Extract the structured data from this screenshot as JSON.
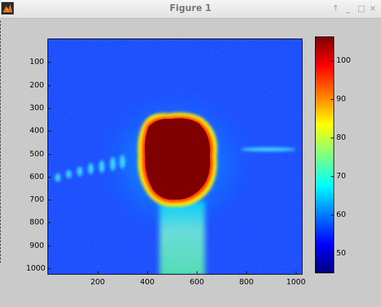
{
  "window": {
    "title": "Figure 1",
    "buttons": [
      "↑",
      "_",
      "□",
      "×"
    ]
  },
  "plot": {
    "xticks": [
      200,
      400,
      600,
      800,
      1000
    ],
    "yticks": [
      100,
      200,
      300,
      400,
      500,
      600,
      700,
      800,
      900,
      1000
    ],
    "xlim": [
      0,
      1024
    ],
    "ylim": [
      0,
      1024
    ],
    "colormap": "jet"
  },
  "colorbar": {
    "ticks": [
      50,
      60,
      70,
      80,
      90,
      100
    ],
    "range": [
      45,
      106
    ]
  },
  "chart_data": {
    "type": "heatmap",
    "colormap": "jet",
    "xlim": [
      0,
      1024
    ],
    "ylim": [
      1024,
      0
    ],
    "xticks": [
      200,
      400,
      600,
      800,
      1000
    ],
    "yticks": [
      100,
      200,
      300,
      400,
      500,
      600,
      700,
      800,
      900,
      1000
    ],
    "clim": [
      45,
      106
    ],
    "colorbar_ticks": [
      50,
      60,
      70,
      80,
      90,
      100
    ],
    "colorbar_position": "right",
    "background_level": 55,
    "features": [
      {
        "kind": "saturated blob",
        "x": 520,
        "y": 530,
        "level": 106
      },
      {
        "kind": "bright column",
        "x_range": [
          470,
          620
        ],
        "y_range": [
          740,
          1024
        ],
        "level": 72
      },
      {
        "kind": "wave streak",
        "x_range": [
          0,
          320
        ],
        "y": 600,
        "level": 68
      },
      {
        "kind": "wave streak",
        "x_range": [
          800,
          1024
        ],
        "y": 450,
        "level": 66
      }
    ]
  }
}
